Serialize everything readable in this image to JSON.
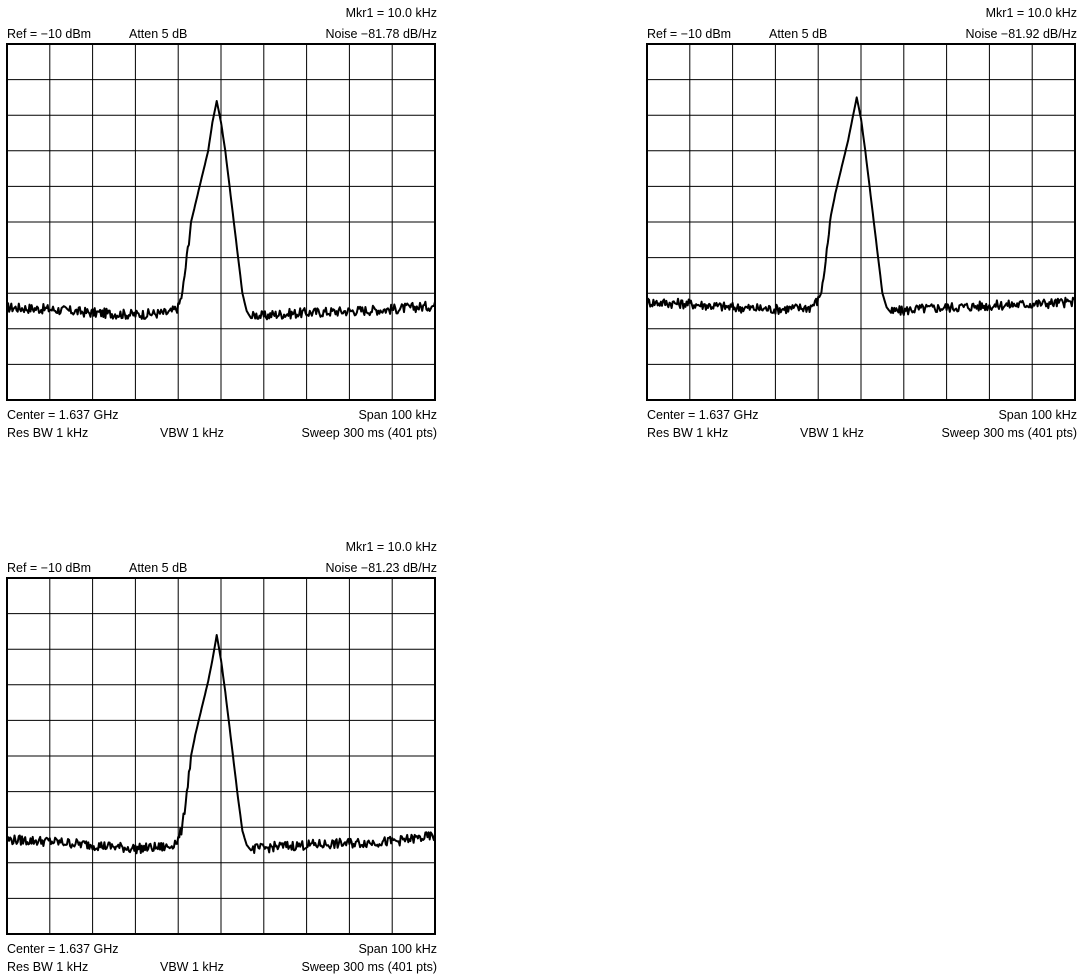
{
  "panels": [
    {
      "ref": "Ref = −10 dBm",
      "atten": "Atten 5 dB",
      "marker": "Mkr1 = 10.0 kHz",
      "noise": "Noise  −81.78 dB/Hz",
      "center": "Center = 1.637 GHz",
      "span": "Span 100 kHz",
      "rbw": "Res BW 1 kHz",
      "vbw": "VBW 1 kHz",
      "sweep": "Sweep  300 ms (401 pts)"
    },
    {
      "ref": "Ref = −10 dBm",
      "atten": "Atten 5 dB",
      "marker": "Mkr1 = 10.0 kHz",
      "noise": "Noise  −81.92 dB/Hz",
      "center": "Center = 1.637 GHz",
      "span": "Span 100 kHz",
      "rbw": "Res BW 1 kHz",
      "vbw": "VBW 1 kHz",
      "sweep": "Sweep  300 ms (401 pts)"
    },
    {
      "ref": "Ref = −10 dBm",
      "atten": "Atten 5 dB",
      "marker": "Mkr1 = 10.0 kHz",
      "noise": "Noise  −81.23 dB/Hz",
      "center": "Center = 1.637 GHz",
      "span": "Span 100 kHz",
      "rbw": "Res BW 1 kHz",
      "vbw": "VBW 1 kHz",
      "sweep": "Sweep  300 ms (401 pts)"
    }
  ],
  "chart_data": [
    {
      "type": "line",
      "x_center_kHz": 0,
      "xlim_kHz": [
        -50,
        50
      ],
      "ylim_div": [
        0,
        10
      ],
      "grid": true,
      "divisions": {
        "x": 10,
        "y": 10
      },
      "series": [
        {
          "x_kHz": [
            -50,
            -40,
            -30,
            -20,
            -12,
            -10,
            -9,
            -8,
            -7,
            -6,
            -5,
            -4,
            -3,
            -2,
            -1,
            0,
            1,
            2,
            3,
            4,
            5,
            6,
            7,
            8,
            10,
            12,
            20,
            30,
            40,
            50
          ],
          "y_div": [
            2.6,
            2.55,
            2.45,
            2.4,
            2.45,
            2.6,
            3.0,
            4.0,
            5.0,
            5.5,
            6.0,
            6.5,
            7.0,
            7.8,
            8.4,
            7.8,
            7.0,
            6.0,
            5.0,
            4.0,
            3.0,
            2.5,
            2.3,
            2.4,
            2.35,
            2.4,
            2.45,
            2.5,
            2.55,
            2.65
          ]
        }
      ]
    },
    {
      "type": "line",
      "x_center_kHz": 0,
      "xlim_kHz": [
        -50,
        50
      ],
      "ylim_div": [
        0,
        10
      ],
      "grid": true,
      "divisions": {
        "x": 10,
        "y": 10
      },
      "series": [
        {
          "x_kHz": [
            -50,
            -40,
            -30,
            -20,
            -12,
            -10,
            -9,
            -8,
            -7,
            -6,
            -5,
            -4,
            -3,
            -2,
            -1,
            0,
            1,
            2,
            3,
            4,
            5,
            6,
            7,
            8,
            10,
            12,
            20,
            30,
            40,
            50
          ],
          "y_div": [
            2.75,
            2.7,
            2.6,
            2.55,
            2.6,
            2.8,
            3.2,
            4.2,
            5.2,
            5.8,
            6.3,
            6.8,
            7.3,
            7.9,
            8.5,
            7.9,
            7.0,
            6.0,
            5.0,
            4.0,
            3.0,
            2.6,
            2.45,
            2.5,
            2.5,
            2.55,
            2.6,
            2.65,
            2.7,
            2.75
          ]
        }
      ]
    },
    {
      "type": "line",
      "x_center_kHz": 0,
      "xlim_kHz": [
        -50,
        50
      ],
      "ylim_div": [
        0,
        10
      ],
      "grid": true,
      "divisions": {
        "x": 10,
        "y": 10
      },
      "series": [
        {
          "x_kHz": [
            -50,
            -40,
            -30,
            -20,
            -12,
            -10,
            -9,
            -8,
            -7,
            -6,
            -5,
            -4,
            -3,
            -2,
            -1,
            0,
            1,
            2,
            3,
            4,
            5,
            6,
            7,
            8,
            10,
            12,
            20,
            30,
            40,
            50
          ],
          "y_div": [
            2.65,
            2.6,
            2.5,
            2.4,
            2.45,
            2.65,
            3.0,
            4.0,
            5.0,
            5.6,
            6.1,
            6.6,
            7.1,
            7.7,
            8.4,
            7.7,
            6.8,
            5.8,
            4.8,
            3.8,
            2.9,
            2.5,
            2.35,
            2.4,
            2.4,
            2.45,
            2.5,
            2.55,
            2.6,
            2.75
          ]
        }
      ]
    }
  ]
}
